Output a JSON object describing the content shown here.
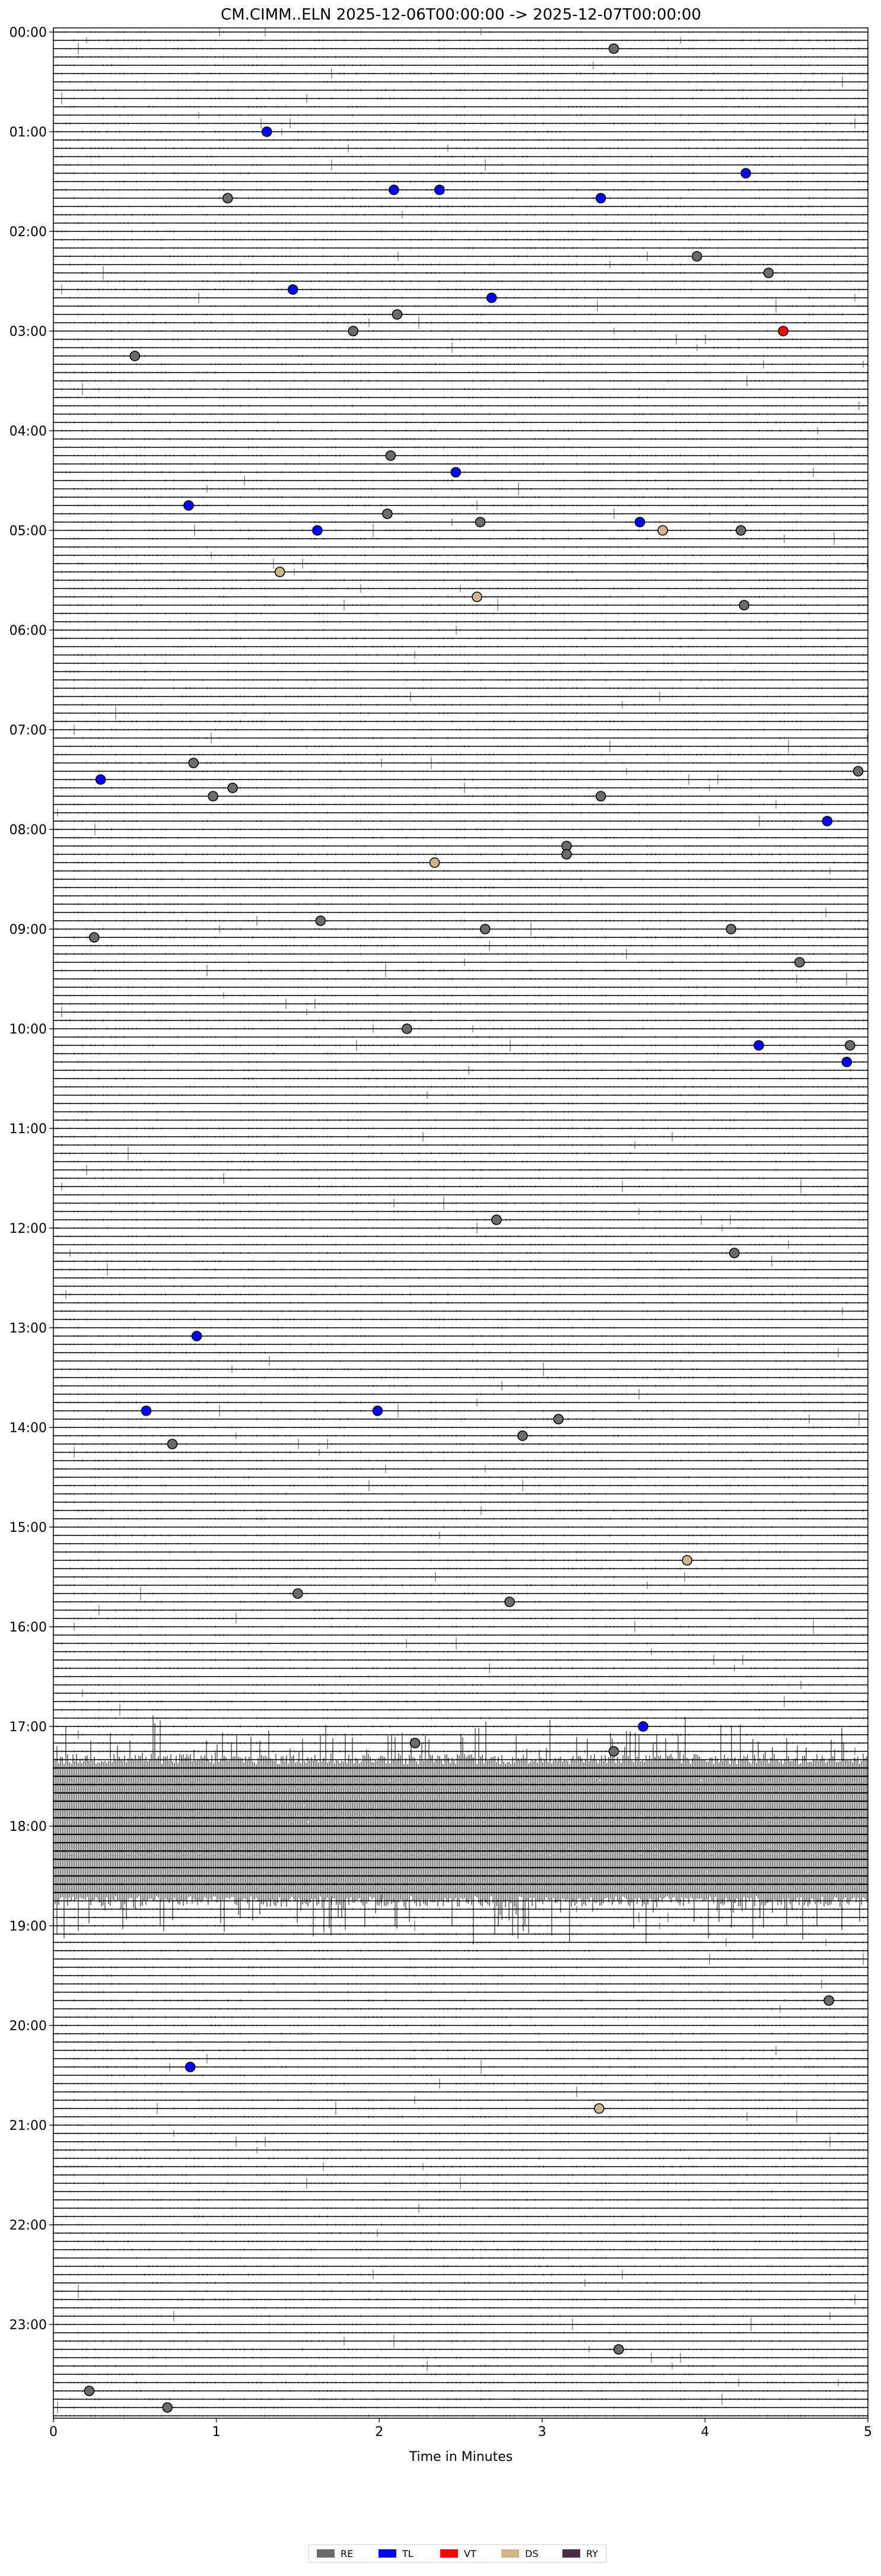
{
  "chart_data": {
    "type": "scatter",
    "title": "CM.CIMM..ELN  2025-12-06T00:00:00 -> 2025-12-07T00:00:00",
    "xlabel": "Time in Minutes",
    "ylabel": "",
    "xlim": [
      0,
      5
    ],
    "x_ticks": [
      "0",
      "1",
      "2",
      "3",
      "4",
      "5"
    ],
    "y_ticks": [
      "00:00",
      "01:00",
      "02:00",
      "03:00",
      "04:00",
      "05:00",
      "06:00",
      "07:00",
      "08:00",
      "09:00",
      "10:00",
      "11:00",
      "12:00",
      "13:00",
      "14:00",
      "15:00",
      "16:00",
      "17:00",
      "18:00",
      "19:00",
      "20:00",
      "21:00",
      "22:00",
      "23:00"
    ],
    "traces_per_hour": 12,
    "trace_minutes": 5,
    "legend_position": "bottom-center",
    "legend": [
      {
        "code": "RE",
        "color": "#6b6b6b"
      },
      {
        "code": "TL",
        "color": "#0000ff"
      },
      {
        "code": "VT",
        "color": "#ff0000"
      },
      {
        "code": "DS",
        "color": "#d2b48c"
      },
      {
        "code": "RY",
        "color": "#4b2d47"
      }
    ],
    "events": [
      {
        "t": "00:10",
        "x": 3.44,
        "cls": "RE"
      },
      {
        "t": "01:00",
        "x": 1.31,
        "cls": "TL"
      },
      {
        "t": "01:25",
        "x": 4.25,
        "cls": "TL"
      },
      {
        "t": "01:35",
        "x": 2.09,
        "cls": "TL"
      },
      {
        "t": "01:35",
        "x": 2.37,
        "cls": "TL"
      },
      {
        "t": "01:40",
        "x": 1.07,
        "cls": "RE"
      },
      {
        "t": "01:40",
        "x": 3.36,
        "cls": "TL"
      },
      {
        "t": "02:15",
        "x": 3.95,
        "cls": "RE"
      },
      {
        "t": "02:25",
        "x": 4.39,
        "cls": "RE"
      },
      {
        "t": "02:35",
        "x": 1.47,
        "cls": "TL"
      },
      {
        "t": "02:40",
        "x": 2.69,
        "cls": "TL"
      },
      {
        "t": "02:50",
        "x": 2.11,
        "cls": "RE"
      },
      {
        "t": "03:00",
        "x": 1.84,
        "cls": "RE"
      },
      {
        "t": "03:00",
        "x": 4.48,
        "cls": "VT"
      },
      {
        "t": "03:15",
        "x": 0.5,
        "cls": "RE"
      },
      {
        "t": "04:15",
        "x": 2.07,
        "cls": "RE"
      },
      {
        "t": "04:25",
        "x": 2.47,
        "cls": "TL"
      },
      {
        "t": "04:45",
        "x": 0.83,
        "cls": "TL"
      },
      {
        "t": "04:50",
        "x": 2.05,
        "cls": "RE"
      },
      {
        "t": "04:55",
        "x": 2.62,
        "cls": "RE"
      },
      {
        "t": "04:55",
        "x": 3.6,
        "cls": "TL"
      },
      {
        "t": "05:00",
        "x": 1.62,
        "cls": "TL"
      },
      {
        "t": "05:00",
        "x": 3.74,
        "cls": "DS"
      },
      {
        "t": "05:00",
        "x": 4.22,
        "cls": "RE"
      },
      {
        "t": "05:25",
        "x": 1.39,
        "cls": "DS"
      },
      {
        "t": "05:40",
        "x": 2.6,
        "cls": "DS"
      },
      {
        "t": "05:45",
        "x": 4.24,
        "cls": "RE"
      },
      {
        "t": "07:20",
        "x": 0.86,
        "cls": "RE"
      },
      {
        "t": "07:25",
        "x": 4.94,
        "cls": "RE"
      },
      {
        "t": "07:30",
        "x": 0.29,
        "cls": "TL"
      },
      {
        "t": "07:35",
        "x": 1.1,
        "cls": "RE"
      },
      {
        "t": "07:40",
        "x": 0.98,
        "cls": "RE"
      },
      {
        "t": "07:40",
        "x": 3.36,
        "cls": "RE"
      },
      {
        "t": "07:55",
        "x": 4.75,
        "cls": "TL"
      },
      {
        "t": "08:10",
        "x": 3.15,
        "cls": "RE"
      },
      {
        "t": "08:15",
        "x": 3.15,
        "cls": "RE"
      },
      {
        "t": "08:20",
        "x": 2.34,
        "cls": "DS"
      },
      {
        "t": "08:55",
        "x": 1.64,
        "cls": "RE"
      },
      {
        "t": "09:00",
        "x": 2.65,
        "cls": "RE"
      },
      {
        "t": "09:00",
        "x": 4.16,
        "cls": "RE"
      },
      {
        "t": "09:05",
        "x": 0.25,
        "cls": "RE"
      },
      {
        "t": "09:20",
        "x": 4.58,
        "cls": "RE"
      },
      {
        "t": "10:00",
        "x": 2.17,
        "cls": "RE"
      },
      {
        "t": "10:10",
        "x": 4.33,
        "cls": "TL"
      },
      {
        "t": "10:10",
        "x": 4.89,
        "cls": "RE"
      },
      {
        "t": "10:20",
        "x": 4.87,
        "cls": "TL"
      },
      {
        "t": "11:55",
        "x": 2.72,
        "cls": "RE"
      },
      {
        "t": "12:15",
        "x": 4.18,
        "cls": "RE"
      },
      {
        "t": "13:05",
        "x": 0.88,
        "cls": "TL"
      },
      {
        "t": "13:50",
        "x": 0.57,
        "cls": "TL"
      },
      {
        "t": "13:50",
        "x": 1.99,
        "cls": "TL"
      },
      {
        "t": "13:55",
        "x": 3.1,
        "cls": "RE"
      },
      {
        "t": "14:05",
        "x": 2.88,
        "cls": "RE"
      },
      {
        "t": "14:10",
        "x": 0.73,
        "cls": "RE"
      },
      {
        "t": "15:20",
        "x": 3.89,
        "cls": "DS"
      },
      {
        "t": "15:40",
        "x": 1.5,
        "cls": "RE"
      },
      {
        "t": "15:45",
        "x": 2.8,
        "cls": "RE"
      },
      {
        "t": "17:00",
        "x": 3.62,
        "cls": "TL"
      },
      {
        "t": "17:10",
        "x": 2.22,
        "cls": "RE"
      },
      {
        "t": "17:15",
        "x": 3.44,
        "cls": "RE"
      },
      {
        "t": "19:45",
        "x": 4.76,
        "cls": "RE"
      },
      {
        "t": "20:25",
        "x": 0.84,
        "cls": "TL"
      },
      {
        "t": "20:50",
        "x": 3.35,
        "cls": "DS"
      },
      {
        "t": "23:15",
        "x": 3.47,
        "cls": "RE"
      },
      {
        "t": "23:40",
        "x": 0.22,
        "cls": "RE"
      },
      {
        "t": "23:50",
        "x": 0.7,
        "cls": "RE"
      }
    ],
    "noisy_intervals": [
      "17:25",
      "17:30",
      "17:35",
      "17:40",
      "17:45",
      "17:50",
      "17:55",
      "18:00",
      "18:05",
      "18:10",
      "18:15",
      "18:20",
      "18:25",
      "18:30",
      "18:35",
      "18:40"
    ],
    "grid": false
  }
}
